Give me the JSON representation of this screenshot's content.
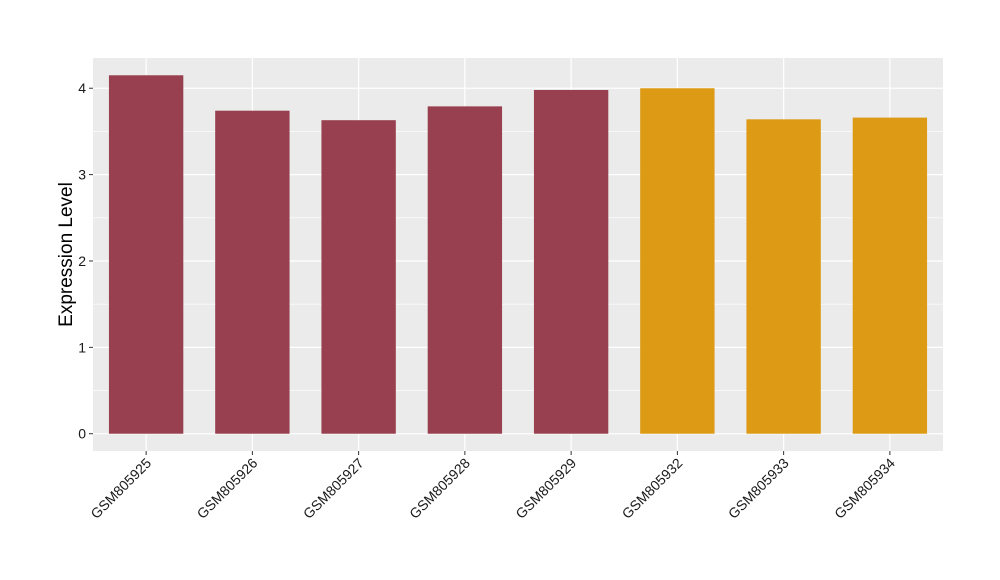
{
  "chart_data": {
    "type": "bar",
    "title": "",
    "xlabel": "",
    "ylabel": "Expression Level",
    "ylim": [
      -0.2,
      4.35
    ],
    "yticks": [
      0,
      1,
      2,
      3,
      4
    ],
    "ytick_labels": [
      "0",
      "1",
      "2",
      "3",
      "4"
    ],
    "grid": true,
    "legend": "none",
    "panel_background": "#ebebeb",
    "grid_color": "#ffffff",
    "categories": [
      "GSM805925",
      "GSM805926",
      "GSM805927",
      "GSM805928",
      "GSM805929",
      "GSM805932",
      "GSM805933",
      "GSM805934"
    ],
    "values": [
      4.15,
      3.74,
      3.63,
      3.79,
      3.98,
      4.0,
      3.64,
      3.66
    ],
    "colors": [
      "#98404f",
      "#98404f",
      "#98404f",
      "#98404f",
      "#98404f",
      "#dc9a15",
      "#dc9a15",
      "#dc9a15"
    ]
  }
}
